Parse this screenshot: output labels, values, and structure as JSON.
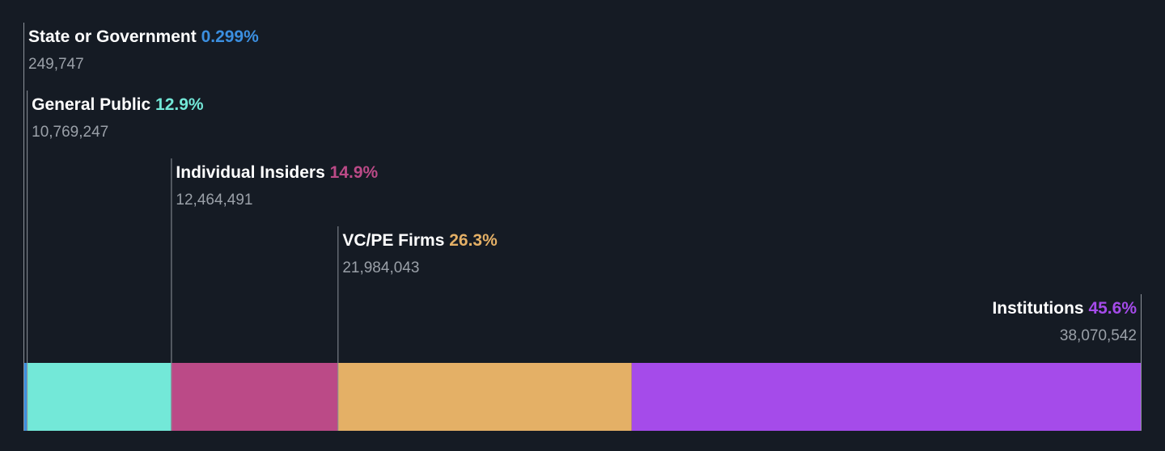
{
  "chart_data": {
    "type": "stacked-bar",
    "orientation": "horizontal",
    "segments": [
      {
        "name": "State or Government",
        "percent_label": "0.299%",
        "value": 0.299,
        "shares": "249,747",
        "color": "#3b8fe0"
      },
      {
        "name": "General Public",
        "percent_label": "12.9%",
        "value": 12.9,
        "shares": "10,769,247",
        "color": "#73e8d8"
      },
      {
        "name": "Individual Insiders",
        "percent_label": "14.9%",
        "value": 14.9,
        "shares": "12,464,491",
        "color": "#bb4a87"
      },
      {
        "name": "VC/PE Firms",
        "percent_label": "26.3%",
        "value": 26.3,
        "shares": "21,984,043",
        "color": "#e4b066"
      },
      {
        "name": "Institutions",
        "percent_label": "45.6%",
        "value": 45.6,
        "shares": "38,070,542",
        "color": "#a54bea"
      }
    ],
    "legend": "none",
    "grid": false
  },
  "colors": {
    "background": "#151b24",
    "label_text": "#ffffff",
    "count_text": "#9aa0a8",
    "leader_line": "#8d939b"
  }
}
